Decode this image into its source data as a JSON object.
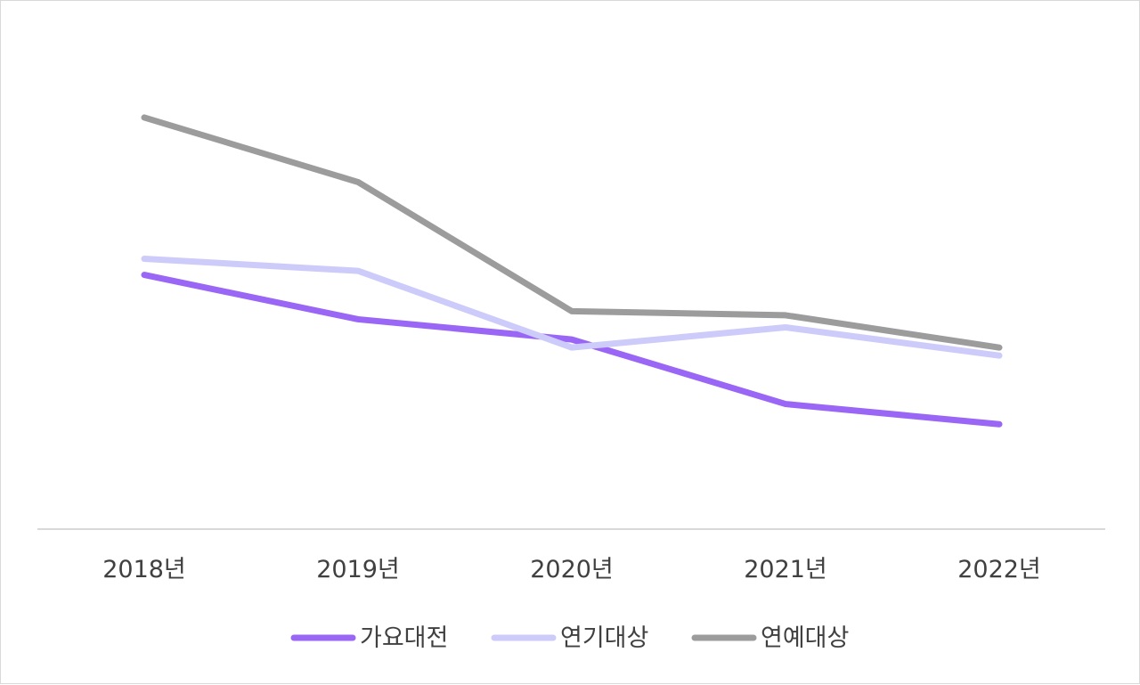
{
  "chart_data": {
    "type": "line",
    "title": "",
    "xlabel": "",
    "ylabel": "",
    "categories": [
      "2018년",
      "2019년",
      "2020년",
      "2021년",
      "2022년"
    ],
    "ylim": [
      0,
      10
    ],
    "grid": false,
    "legend": "bottom",
    "series": [
      {
        "name": "가요대전",
        "color": "#9966f5",
        "values": [
          6.3,
          5.2,
          4.7,
          3.1,
          2.6
        ]
      },
      {
        "name": "연기대상",
        "color": "#cccbfa",
        "values": [
          6.7,
          6.4,
          4.5,
          5.0,
          4.3
        ]
      },
      {
        "name": "연예대상",
        "color": "#9c9c9c",
        "values": [
          10.2,
          8.6,
          5.4,
          5.3,
          4.5
        ]
      }
    ]
  }
}
